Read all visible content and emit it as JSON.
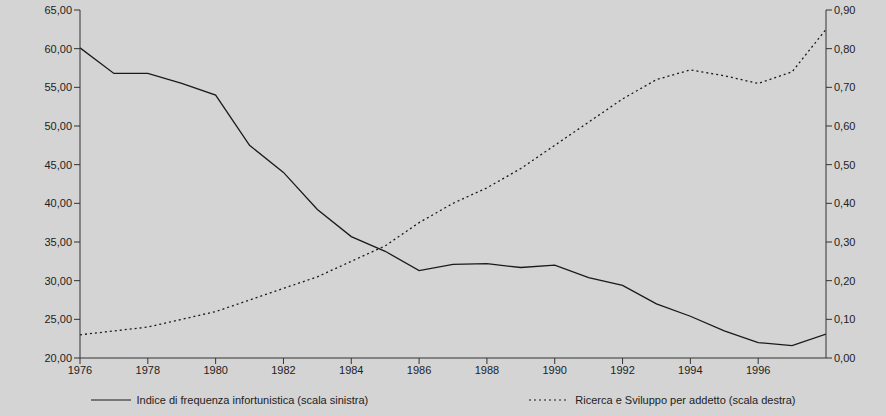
{
  "chart_data": {
    "type": "line",
    "x": [
      1976,
      1977,
      1978,
      1979,
      1980,
      1981,
      1982,
      1983,
      1984,
      1985,
      1986,
      1987,
      1988,
      1989,
      1990,
      1991,
      1992,
      1993,
      1994,
      1995,
      1996,
      1997,
      1998
    ],
    "series": [
      {
        "name": "Indice di frequenza infortunistica (scala sinistra)",
        "color": "#1a1a1a",
        "line_style": "solid",
        "values": [
          60.1,
          56.8,
          56.8,
          55.5,
          54.0,
          47.5,
          44.0,
          39.2,
          35.7,
          33.8,
          31.3,
          32.1,
          32.2,
          31.7,
          32.0,
          30.4,
          29.4,
          27.0,
          25.4,
          23.5,
          22.0,
          21.6,
          23.1
        ]
      },
      {
        "name": "Ricerca e Sviluppo per addetto (scala destra)",
        "color": "#1a1a1a",
        "line_style": "dotted",
        "axis": "y2",
        "values": [
          0.06,
          0.07,
          0.08,
          0.1,
          0.12,
          0.15,
          0.18,
          0.21,
          0.25,
          0.29,
          0.35,
          0.4,
          0.44,
          0.49,
          0.55,
          0.61,
          0.67,
          0.72,
          0.745,
          0.73,
          0.71,
          0.74,
          0.85
        ]
      }
    ],
    "xlim": [
      1976,
      1998
    ],
    "xticks": [
      1976,
      1978,
      1980,
      1982,
      1984,
      1986,
      1988,
      1990,
      1992,
      1994,
      1996
    ],
    "ylim": [
      20,
      65
    ],
    "yticks": [
      {
        "value": 20,
        "label": "20,00"
      },
      {
        "value": 25,
        "label": "25,00"
      },
      {
        "value": 30,
        "label": "30,00"
      },
      {
        "value": 35,
        "label": "35,00"
      },
      {
        "value": 40,
        "label": "40,00"
      },
      {
        "value": 45,
        "label": "45,00"
      },
      {
        "value": 50,
        "label": "50,00"
      },
      {
        "value": 55,
        "label": "55,00"
      },
      {
        "value": 60,
        "label": "60,00"
      },
      {
        "value": 65,
        "label": "65,00"
      }
    ],
    "y2lim": [
      0,
      0.9
    ],
    "y2ticks": [
      {
        "value": 0,
        "label": "0,00"
      },
      {
        "value": 0.1,
        "label": "0,10"
      },
      {
        "value": 0.2,
        "label": "0,20"
      },
      {
        "value": 0.3,
        "label": "0,30"
      },
      {
        "value": 0.4,
        "label": "0,40"
      },
      {
        "value": 0.5,
        "label": "0,50"
      },
      {
        "value": 0.6,
        "label": "0,60"
      },
      {
        "value": 0.7,
        "label": "0,70"
      },
      {
        "value": 0.8,
        "label": "0,80"
      },
      {
        "value": 0.9,
        "label": "0,90"
      }
    ],
    "grid": false,
    "legend": "bottom"
  }
}
